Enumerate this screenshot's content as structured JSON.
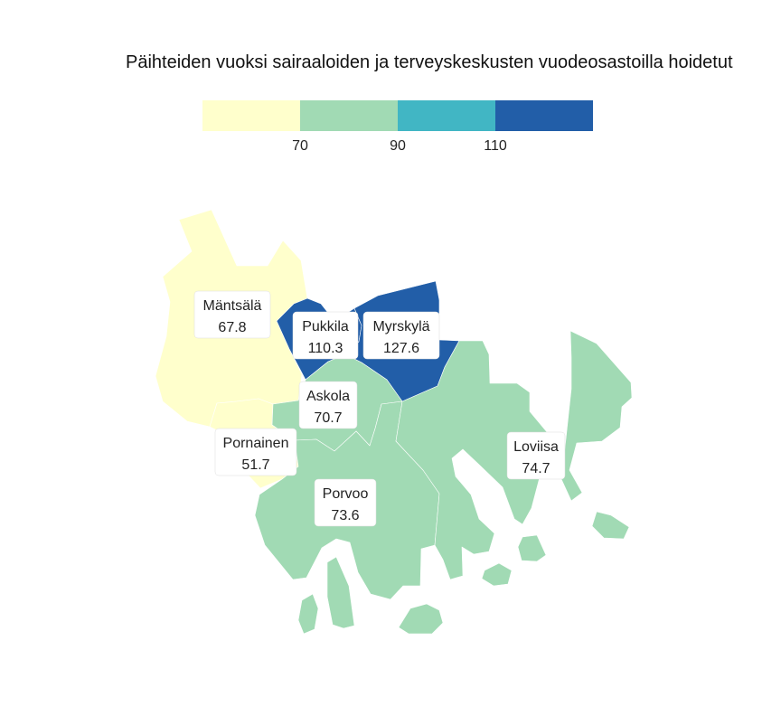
{
  "title": "Päihteiden vuoksi sairaaloiden ja terveyskeskusten vuodeosastoilla hoidetut",
  "legend": {
    "bins": [
      {
        "color": "#ffffcc"
      },
      {
        "color": "#a1dab4"
      },
      {
        "color": "#41b6c4"
      },
      {
        "color": "#225ea8"
      }
    ],
    "breaks": [
      "70",
      "90",
      "110"
    ]
  },
  "municipalities": [
    {
      "name": "Mäntsälä",
      "value": "67.8",
      "color": "#ffffcc"
    },
    {
      "name": "Pukkila",
      "value": "110.3",
      "color": "#225ea8"
    },
    {
      "name": "Myrskylä",
      "value": "127.6",
      "color": "#225ea8"
    },
    {
      "name": "Askola",
      "value": "70.7",
      "color": "#a1dab4"
    },
    {
      "name": "Pornainen",
      "value": "51.7",
      "color": "#ffffcc"
    },
    {
      "name": "Porvoo",
      "value": "73.6",
      "color": "#a1dab4"
    },
    {
      "name": "Loviisa",
      "value": "74.7",
      "color": "#a1dab4"
    }
  ]
}
